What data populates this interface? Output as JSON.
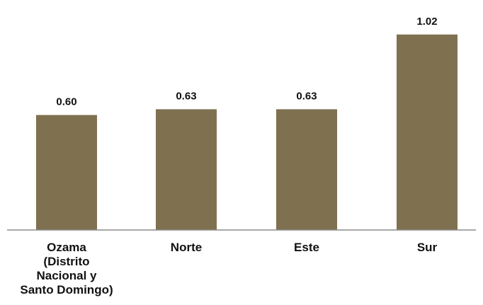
{
  "chart_data": {
    "type": "bar",
    "categories": [
      "Ozama (Distrito Nacional y Santo Domingo)",
      "Norte",
      "Este",
      "Sur"
    ],
    "category_label_lines": [
      [
        "Ozama",
        "(Distrito",
        "Nacional y",
        "Santo Domingo)"
      ],
      [
        "Norte"
      ],
      [
        "Este"
      ],
      [
        "Sur"
      ]
    ],
    "values": [
      0.6,
      0.63,
      0.63,
      1.02
    ],
    "value_labels": [
      "0.60",
      "0.63",
      "0.63",
      "1.02"
    ],
    "title": "",
    "xlabel": "",
    "ylabel": "",
    "ylim": [
      0,
      1.2
    ],
    "grid": false,
    "legend": "none",
    "bar_color": "#7f7050",
    "axis_color": "#8c8c8c"
  }
}
